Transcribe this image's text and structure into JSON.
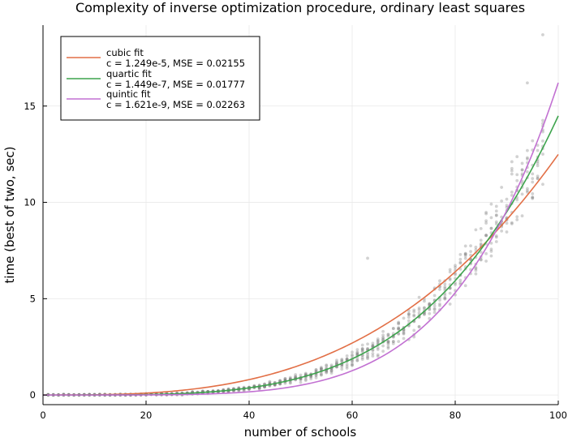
{
  "chart_data": {
    "type": "scatter",
    "title": "Complexity of inverse optimization procedure, ordinary least squares",
    "xlabel": "number of schools",
    "ylabel": "time (best of two, sec)",
    "xlim": [
      0,
      100
    ],
    "ylim": [
      -0.5,
      19.2
    ],
    "xticks": [
      0,
      20,
      40,
      60,
      80,
      100
    ],
    "yticks": [
      0,
      5,
      10,
      15
    ],
    "xtick_labels": [
      "0",
      "20",
      "40",
      "60",
      "80",
      "100"
    ],
    "ytick_labels": [
      "0",
      "5",
      "10",
      "15"
    ],
    "grid": true,
    "legend_position": "top-left",
    "scatter": {
      "color": "#7f7f7f",
      "opacity": 0.35,
      "x_range": [
        1,
        97
      ],
      "samples_per_x": 10,
      "outliers": [
        [
          63,
          7.1
        ],
        [
          94,
          16.2
        ],
        [
          97,
          18.7
        ]
      ]
    },
    "series": [
      {
        "name": "cubic fit",
        "detail": "c = 1.249e-5, MSE = 0.02155",
        "coef": 1.249e-05,
        "power": 3,
        "color": "#e26f46"
      },
      {
        "name": "quartic fit",
        "detail": "c = 1.449e-7, MSE = 0.01777",
        "coef": 1.449e-07,
        "power": 4,
        "color": "#3da44d"
      },
      {
        "name": "quintic fit",
        "detail": "c = 1.621e-9, MSE = 0.02263",
        "coef": 1.621e-09,
        "power": 5,
        "color": "#c271d2"
      }
    ]
  }
}
